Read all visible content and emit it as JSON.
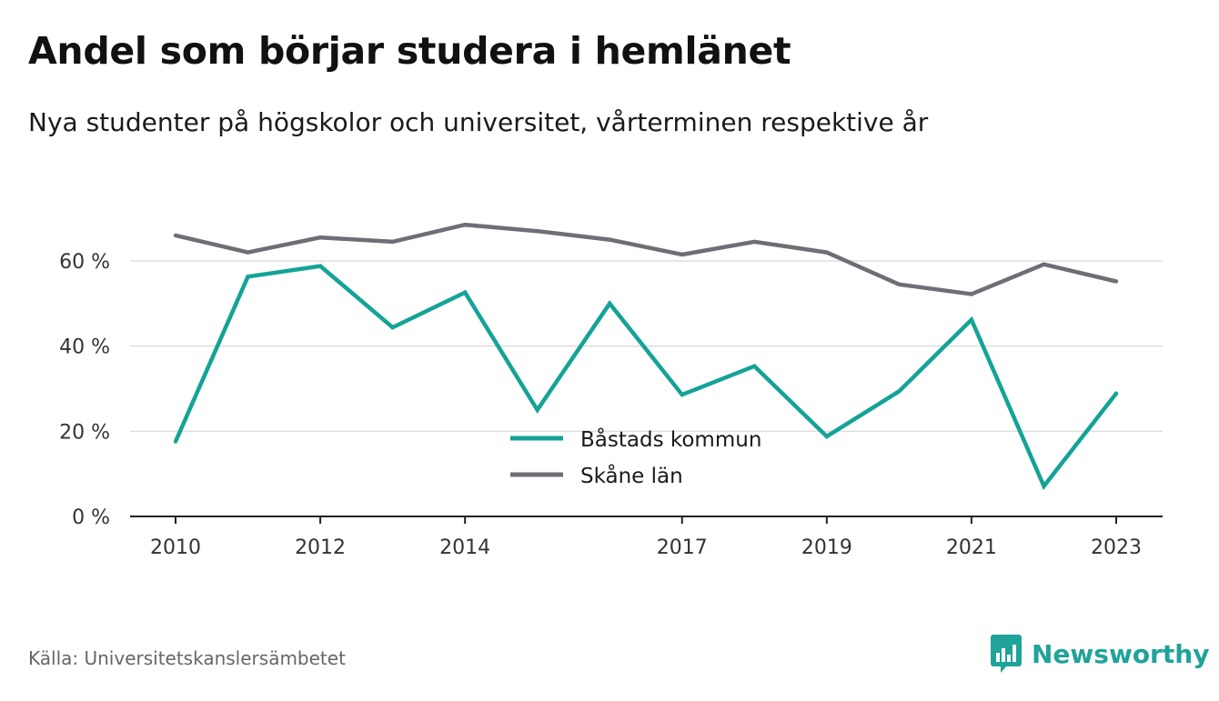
{
  "title": "Andel som börjar studera i hemlänet",
  "subtitle": "Nya studenter på högskolor och universitet, vårterminen respektive år",
  "source": "Källa: Universitetskanslersämbetet",
  "brand": "Newsworthy",
  "colors": {
    "bastad": "#14a396",
    "skane": "#6f6d75",
    "grid": "#dddddd",
    "axis": "#222222",
    "brand": "#1fa39a"
  },
  "chart_data": {
    "type": "line",
    "title": "Andel som börjar studera i hemlänet",
    "subtitle": "Nya studenter på högskolor och universitet, vårterminen respektive år",
    "x": [
      2010,
      2011,
      2012,
      2013,
      2014,
      2015,
      2016,
      2017,
      2018,
      2019,
      2020,
      2021,
      2022,
      2023
    ],
    "x_ticks": [
      "2010",
      "2012",
      "2014",
      "2017",
      "2019",
      "2021",
      "2023"
    ],
    "y_ticks": [
      "0 %",
      "20 %",
      "40 %",
      "60 %"
    ],
    "ylim": [
      0,
      70
    ],
    "grid": true,
    "legend_position": "center",
    "series": [
      {
        "name": "Båstads kommun",
        "color": "#14a396",
        "values": [
          17.6,
          56.3,
          58.8,
          44.4,
          52.6,
          25.0,
          50.0,
          28.6,
          35.3,
          18.8,
          29.4,
          46.2,
          7.1,
          28.9
        ]
      },
      {
        "name": "Skåne län",
        "color": "#6f6d75",
        "values": [
          66.0,
          62.0,
          65.5,
          64.5,
          68.5,
          67.0,
          65.0,
          61.5,
          64.5,
          62.0,
          54.5,
          52.2,
          59.2,
          55.2
        ]
      }
    ]
  }
}
